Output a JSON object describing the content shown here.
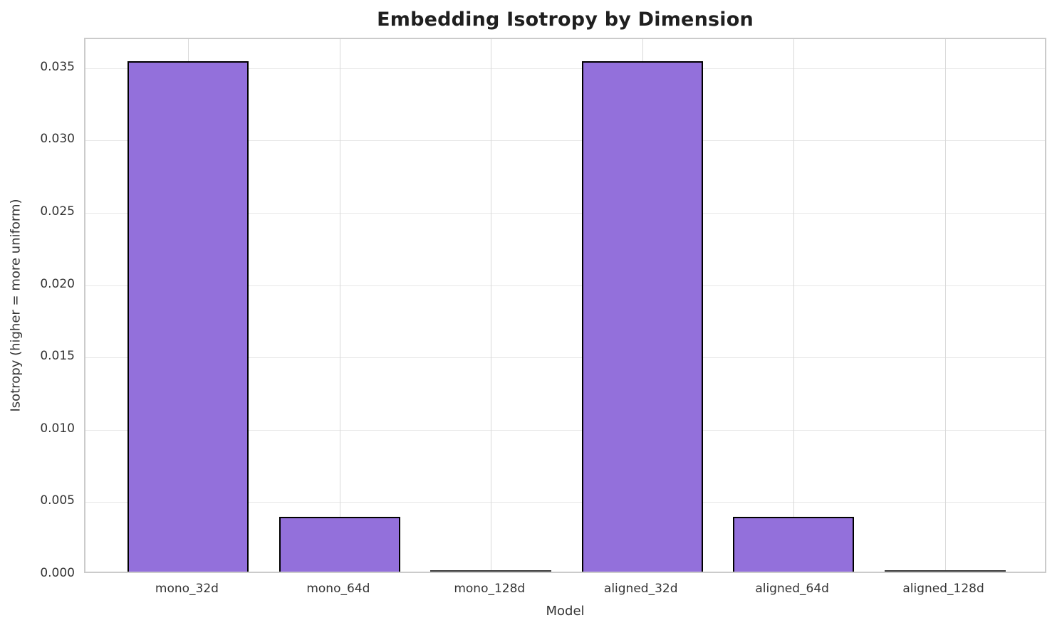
{
  "chart_data": {
    "type": "bar",
    "title": "Embedding Isotropy by Dimension",
    "xlabel": "Model",
    "ylabel": "Isotropy (higher = more uniform)",
    "categories": [
      "mono_32d",
      "mono_64d",
      "mono_128d",
      "aligned_32d",
      "aligned_64d",
      "aligned_128d"
    ],
    "values": [
      0.0353,
      0.0038,
      3e-05,
      0.0353,
      0.0038,
      3e-05
    ],
    "ylim": [
      0,
      0.037
    ],
    "yticks": [
      0.0,
      0.005,
      0.01,
      0.015,
      0.02,
      0.025,
      0.03,
      0.035
    ],
    "ytick_labels": [
      "0.000",
      "0.005",
      "0.010",
      "0.015",
      "0.020",
      "0.025",
      "0.030",
      "0.035"
    ],
    "grid": true,
    "legend_position": "none",
    "bar_color": "#9370DB",
    "bar_edge_color": "#000000",
    "background_color": "#ffffff"
  }
}
